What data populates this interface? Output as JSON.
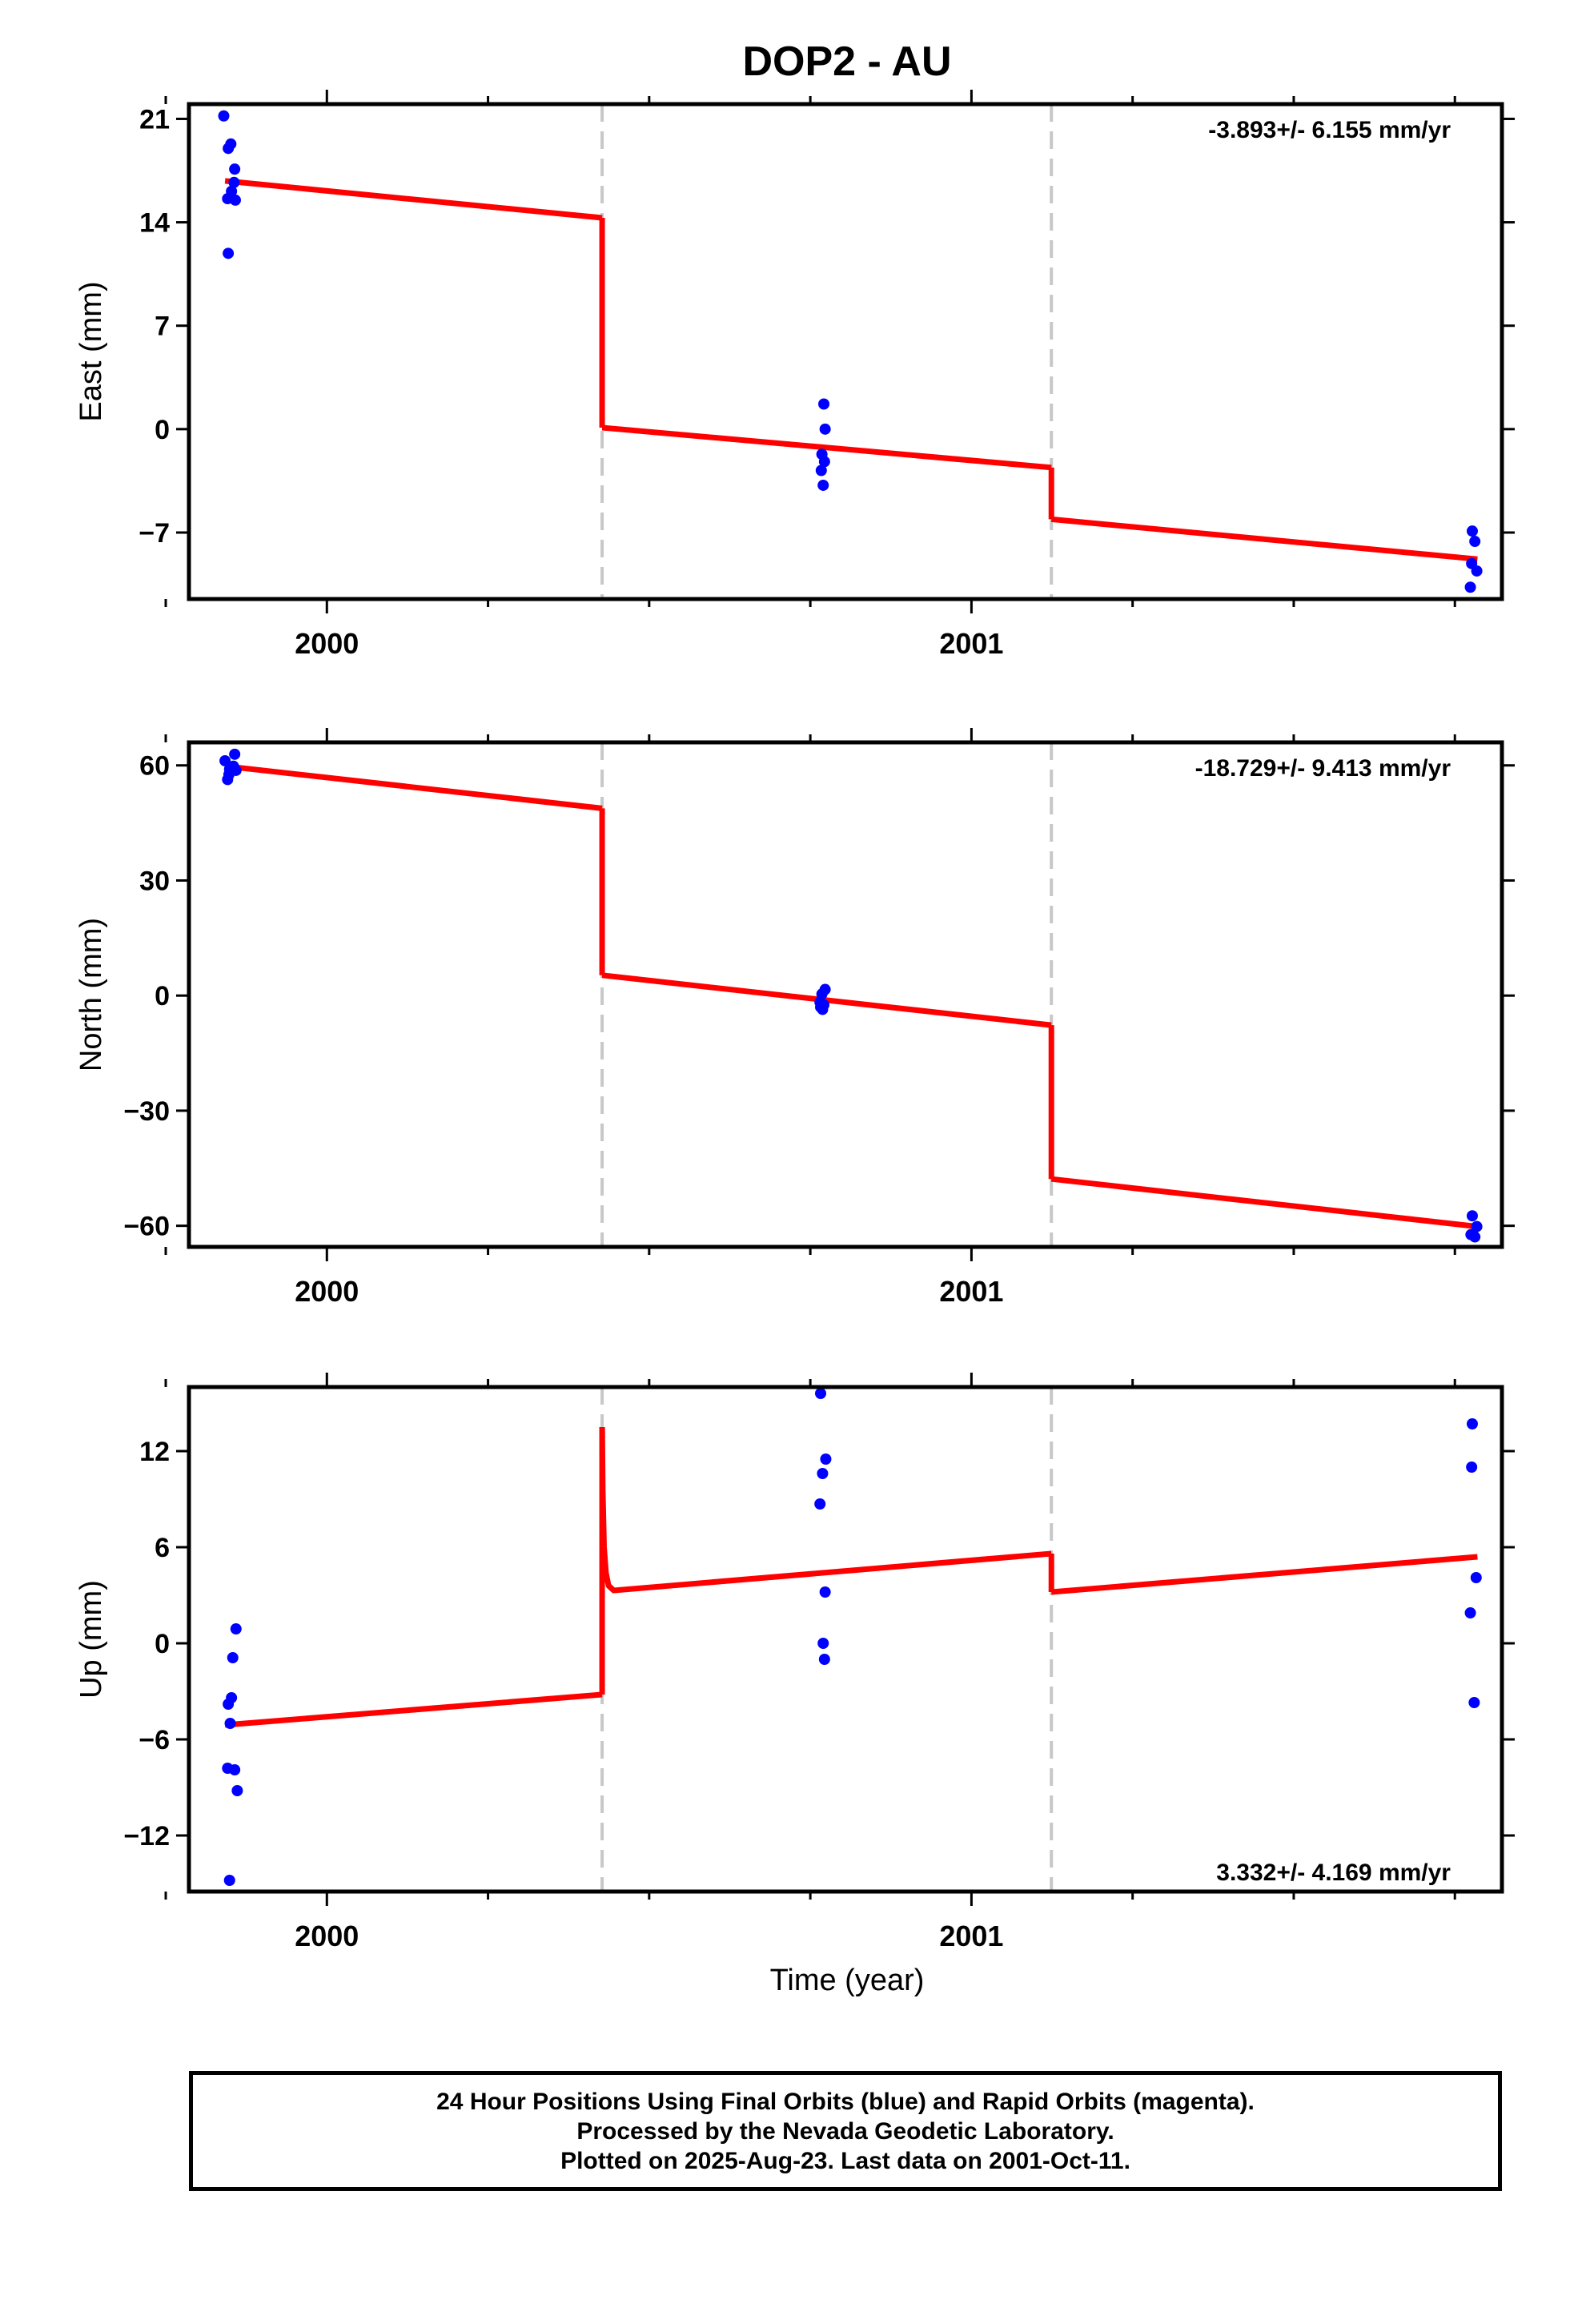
{
  "chart_data": {
    "title": "DOP2 - AU",
    "xlabel": "Time (year)",
    "xlim": [
      1999.786,
      2001.823
    ],
    "xticks_labeled": [
      2000,
      2001
    ],
    "xticks_minor": [
      1999.75,
      2000.25,
      2000.5,
      2000.75,
      2001.25,
      2001.5,
      2001.75
    ],
    "breaks": [
      2000.427,
      2001.124
    ],
    "grid": false,
    "panels": [
      {
        "type": "scatter+line",
        "component": "East",
        "ylabel": "East (mm)",
        "ylim": [
          -11.5,
          22
        ],
        "yticks": [
          -7,
          0,
          7,
          14,
          21
        ],
        "ytick_labels": [
          "−7",
          "0",
          "7",
          "14",
          "21"
        ],
        "rate_text": "-3.893+/- 6.155 mm/yr",
        "rate_position": "top-right",
        "points": [
          [
            1999.84,
            21.2
          ],
          [
            1999.847,
            19.0
          ],
          [
            1999.851,
            19.3
          ],
          [
            1999.846,
            15.6
          ],
          [
            1999.852,
            16.1
          ],
          [
            1999.857,
            17.6
          ],
          [
            1999.856,
            16.7
          ],
          [
            1999.858,
            15.5
          ],
          [
            1999.847,
            11.9
          ],
          [
            2000.771,
            1.7
          ],
          [
            2000.768,
            -1.7
          ],
          [
            2000.772,
            -2.2
          ],
          [
            2000.767,
            -2.8
          ],
          [
            2000.77,
            -3.8
          ],
          [
            2000.773,
            0.0
          ],
          [
            2001.777,
            -6.9
          ],
          [
            2001.781,
            -7.6
          ],
          [
            2001.776,
            -9.1
          ],
          [
            2001.784,
            -9.6
          ],
          [
            2001.774,
            -10.7
          ]
        ],
        "model_segments": [
          [
            [
              1999.842,
              16.8
            ],
            [
              2000.427,
              14.3
            ]
          ],
          [
            [
              2000.427,
              0.1
            ],
            [
              2001.124,
              -2.6
            ]
          ],
          [
            [
              2001.124,
              -6.1
            ],
            [
              2001.785,
              -8.8
            ]
          ]
        ]
      },
      {
        "type": "scatter+line",
        "component": "North",
        "ylabel": "North (mm)",
        "ylim": [
          -65.5,
          66
        ],
        "yticks": [
          -60,
          -30,
          0,
          30,
          60
        ],
        "ytick_labels": [
          "−60",
          "−30",
          "0",
          "30",
          "60"
        ],
        "rate_text": "-18.729+/- 9.413 mm/yr",
        "rate_position": "top-right",
        "points": [
          [
            1999.842,
            61.2
          ],
          [
            1999.857,
            62.9
          ],
          [
            1999.855,
            59.8
          ],
          [
            1999.849,
            59.0
          ],
          [
            1999.848,
            57.6
          ],
          [
            1999.846,
            56.3
          ],
          [
            1999.859,
            58.7
          ],
          [
            2000.765,
            -1.7
          ],
          [
            2000.769,
            -3.6
          ],
          [
            2000.773,
            1.6
          ],
          [
            2000.768,
            0.4
          ],
          [
            2000.771,
            -2.4
          ],
          [
            2000.766,
            -3.0
          ],
          [
            2001.777,
            -57.4
          ],
          [
            2001.775,
            -62.3
          ],
          [
            2001.781,
            -62.9
          ],
          [
            2001.784,
            -60.2
          ]
        ],
        "model_segments": [
          [
            [
              1999.842,
              59.8
            ],
            [
              2000.427,
              48.8
            ]
          ],
          [
            [
              2000.427,
              5.3
            ],
            [
              2001.124,
              -7.7
            ]
          ],
          [
            [
              2001.124,
              -47.8
            ],
            [
              2001.785,
              -60.2
            ]
          ]
        ]
      },
      {
        "type": "scatter+line",
        "component": "Up",
        "ylabel": "Up (mm)",
        "ylim": [
          -15.5,
          16
        ],
        "yticks": [
          -12,
          -6,
          0,
          6,
          12
        ],
        "ytick_labels": [
          "−12",
          "−6",
          "0",
          "6",
          "12"
        ],
        "rate_text": "3.332+/- 4.169 mm/yr",
        "rate_position": "bottom-right",
        "points": [
          [
            1999.859,
            0.9
          ],
          [
            1999.854,
            -0.9
          ],
          [
            1999.852,
            -3.4
          ],
          [
            1999.847,
            -3.8
          ],
          [
            1999.85,
            -5.0
          ],
          [
            1999.846,
            -7.8
          ],
          [
            1999.857,
            -7.9
          ],
          [
            1999.861,
            -9.2
          ],
          [
            1999.849,
            -14.8
          ],
          [
            2000.766,
            15.6
          ],
          [
            2000.774,
            11.5
          ],
          [
            2000.769,
            10.6
          ],
          [
            2000.765,
            8.7
          ],
          [
            2000.773,
            3.2
          ],
          [
            2000.77,
            0.0
          ],
          [
            2000.772,
            -1.0
          ],
          [
            2001.777,
            13.7
          ],
          [
            2001.776,
            11.0
          ],
          [
            2001.783,
            4.1
          ],
          [
            2001.774,
            1.9
          ],
          [
            2001.78,
            -3.7
          ]
        ],
        "model_segments": [
          [
            [
              1999.842,
              -5.1
            ],
            [
              2000.427,
              -3.2
            ]
          ],
          [
            [
              2000.427,
              13.5
            ],
            [
              2000.428,
              9.5
            ],
            [
              2000.43,
              6.0
            ],
            [
              2000.433,
              4.4
            ],
            [
              2000.437,
              3.6
            ],
            [
              2000.445,
              3.3
            ],
            [
              2001.124,
              5.6
            ]
          ],
          [
            [
              2001.124,
              3.2
            ],
            [
              2001.785,
              5.4
            ]
          ]
        ]
      }
    ],
    "series": [
      {
        "name": "Final Orbits",
        "color": "#0000ff",
        "marker": "circle"
      },
      {
        "name": "Model",
        "color": "#ff0000",
        "marker": "line"
      }
    ],
    "colors": {
      "points": "#0000ff",
      "model": "#ff0000",
      "breaks": "#c8c8c8",
      "frame": "#000000"
    }
  },
  "footer": {
    "line1": "24 Hour Positions Using Final Orbits (blue) and Rapid Orbits (magenta).",
    "line2": "Processed by the Nevada Geodetic Laboratory.",
    "line3": "Plotted on 2025-Aug-23. Last data on 2001-Oct-11."
  }
}
